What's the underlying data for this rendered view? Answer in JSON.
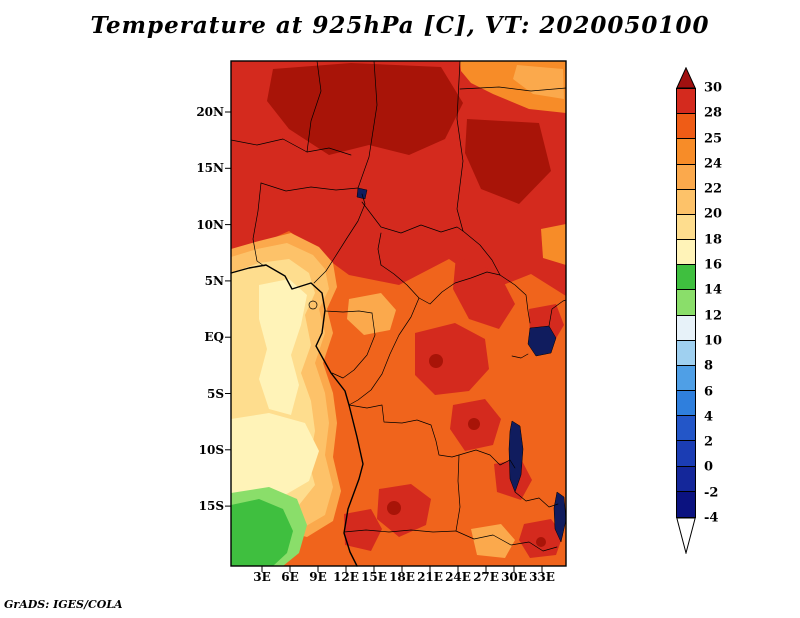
{
  "title": "Temperature at 925hPa [C], VT: 2020050100",
  "attribution": "GrADS: IGES/COLA",
  "axes": {
    "lat_labels": [
      "20N",
      "15N",
      "10N",
      "5N",
      "EQ",
      "5S",
      "10S",
      "15S"
    ],
    "lon_labels": [
      "3E",
      "6E",
      "9E",
      "12E",
      "15E",
      "18E",
      "21E",
      "24E",
      "27E",
      "30E",
      "33E"
    ]
  },
  "colorbar": {
    "tick_labels": [
      "30",
      "28",
      "25",
      "24",
      "22",
      "20",
      "18",
      "16",
      "14",
      "12",
      "10",
      "8",
      "6",
      "4",
      "2",
      "0",
      "-2",
      "-4"
    ],
    "segment_colors_top_to_bottom": [
      "#d42a1e",
      "#ef5c16",
      "#f78c28",
      "#fba94c",
      "#fdc269",
      "#fedd8e",
      "#fff3b8",
      "#3fbf3f",
      "#8ade6a",
      "#e7f2f9",
      "#9fd0f0",
      "#4f9fe6",
      "#2f7fdd",
      "#2356c8",
      "#1b3db4",
      "#14279a",
      "#0b1280"
    ],
    "arrow_top_color": "#a01010",
    "arrow_bottom_color": "#ffffff"
  },
  "map": {
    "region_colors": {
      "base_orange": "#f0641c",
      "red": "#d42a1e",
      "dark_red": "#a81408",
      "orange": "#f78c28",
      "light_orange": "#fba94c",
      "yellow_orange": "#fdc269",
      "pale_yellow": "#fedd8e",
      "cream": "#fff3b8",
      "green": "#3fbf3f",
      "light_green": "#8ade6a",
      "lake": "#101c5e"
    }
  },
  "chart_data": {
    "type": "heatmap",
    "title": "Temperature at 925hPa [C], VT: 2020050100",
    "units": "C",
    "legend_levels": [
      30,
      28,
      25,
      24,
      22,
      20,
      18,
      16,
      14,
      12,
      10,
      8,
      6,
      4,
      2,
      0,
      -2,
      -4
    ],
    "x_ticks": [
      "3E",
      "6E",
      "9E",
      "12E",
      "15E",
      "18E",
      "21E",
      "24E",
      "27E",
      "30E",
      "33E"
    ],
    "y_ticks": [
      "20N",
      "15N",
      "10N",
      "5N",
      "EQ",
      "5S",
      "10S",
      "15S"
    ],
    "legend_position": "right"
  }
}
